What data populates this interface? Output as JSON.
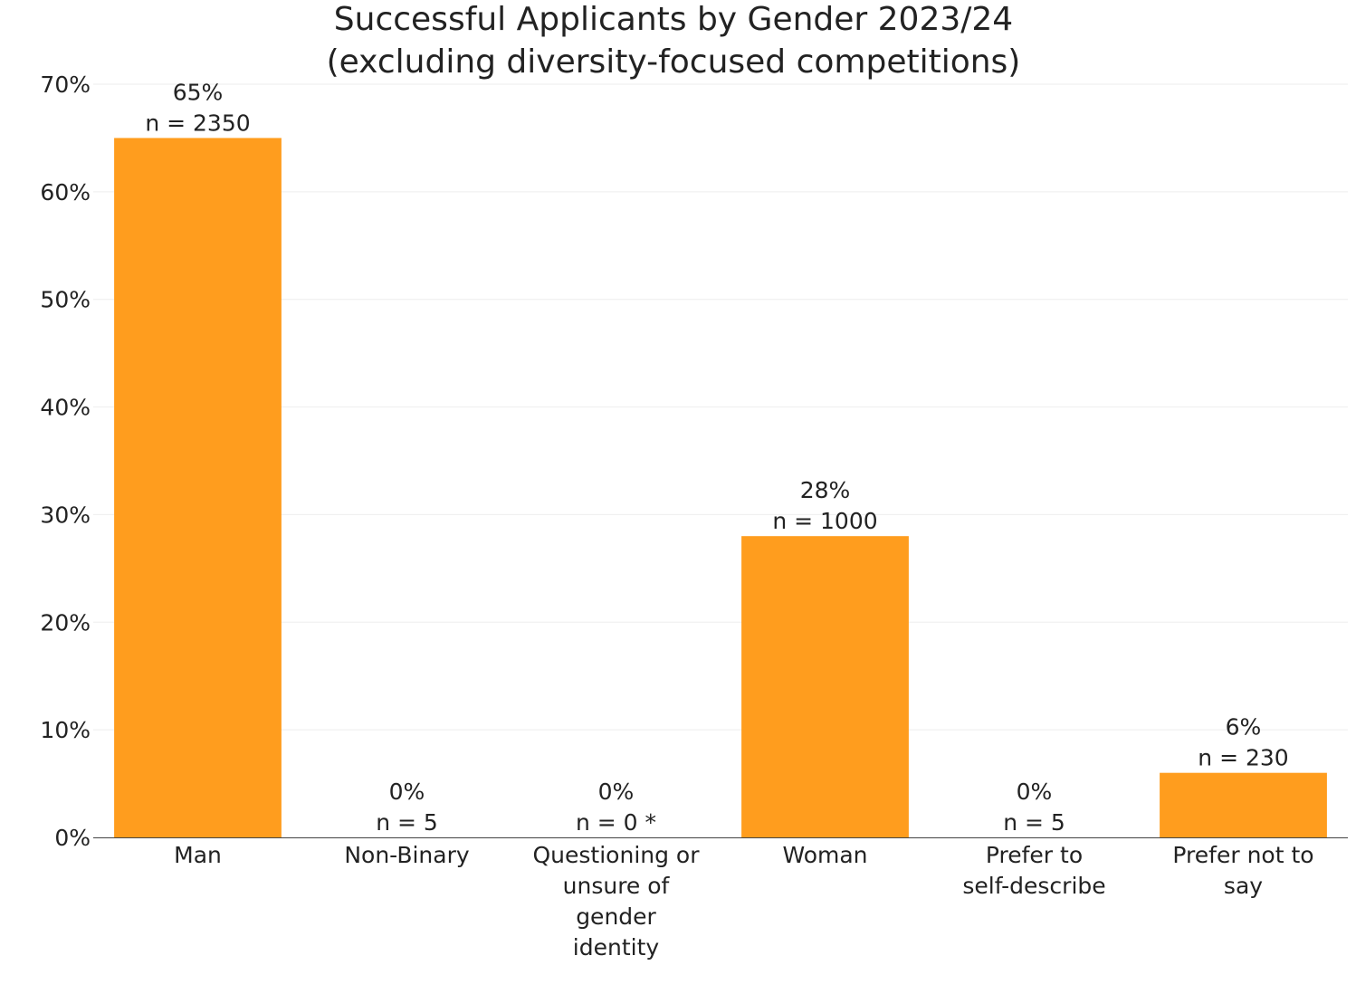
{
  "chart_data": {
    "type": "bar",
    "title": [
      "Successful Applicants by Gender 2023/24",
      "(excluding diversity-focused competitions)"
    ],
    "xlabel": "",
    "ylabel": "",
    "categories": [
      [
        "Man"
      ],
      [
        "Non-Binary"
      ],
      [
        "Questioning or",
        "unsure of",
        "gender",
        "identity"
      ],
      [
        "Woman"
      ],
      [
        "Prefer to",
        "self-describe"
      ],
      [
        "Prefer not to",
        "say"
      ]
    ],
    "values": [
      65,
      0,
      0,
      28,
      0,
      6
    ],
    "data_labels": [
      [
        "65%",
        "n = 2350"
      ],
      [
        "0%",
        "n = 5"
      ],
      [
        "0%",
        "n = 0 *"
      ],
      [
        "28%",
        "n = 1000"
      ],
      [
        "0%",
        "n = 5"
      ],
      [
        "6%",
        "n = 230"
      ]
    ],
    "ylim": [
      0,
      70
    ],
    "yticks": [
      0,
      10,
      20,
      30,
      40,
      50,
      60,
      70
    ],
    "ytick_labels": [
      "0%",
      "10%",
      "20%",
      "30%",
      "40%",
      "50%",
      "60%",
      "70%"
    ],
    "grid": true,
    "bar_color": "#ff9d1e"
  }
}
